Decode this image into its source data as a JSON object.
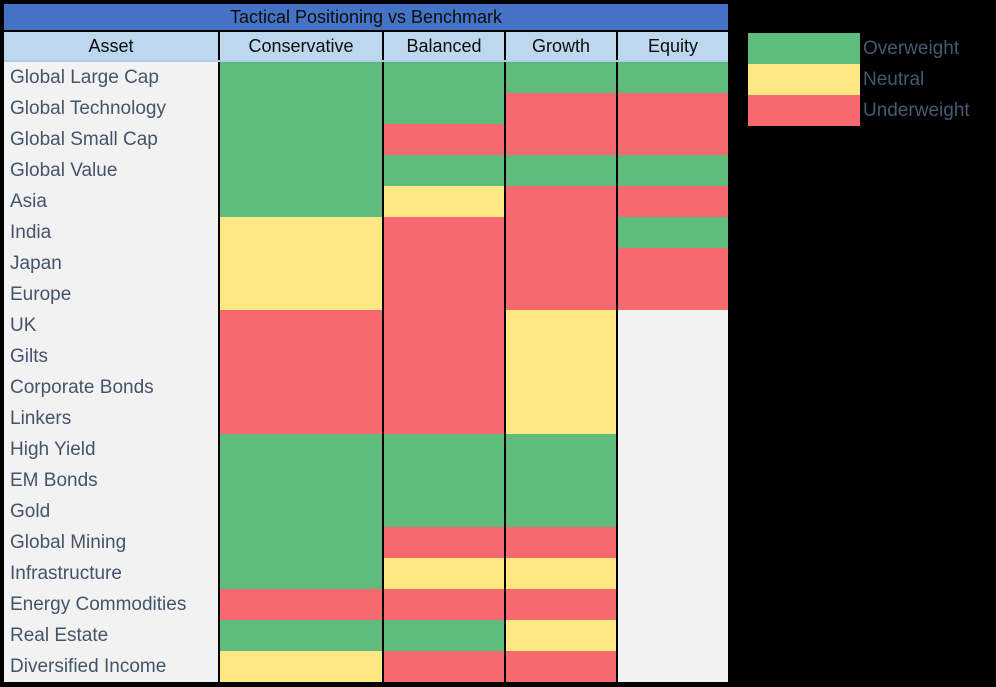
{
  "title": "Tactical Positioning vs Benchmark",
  "colors": {
    "overweight": "#5ebd7c",
    "neutral": "#fde884",
    "underweight": "#f6696e",
    "none": "#f2f2f2",
    "title_bar": "#4472c4",
    "header_bg": "#bdd7ee",
    "asset_col_bg": "#f2f2f2",
    "page_background": "#000000",
    "label_text": "#44546a"
  },
  "chart_data": {
    "type": "heatmap",
    "title": "Tactical Positioning vs Benchmark",
    "columns": [
      "Asset",
      "Conservative",
      "Balanced",
      "Growth",
      "Equity"
    ],
    "legend_position": "top-right",
    "legend": [
      {
        "label": "Overweight",
        "status": "overweight"
      },
      {
        "label": "Neutral",
        "status": "neutral"
      },
      {
        "label": "Underweight",
        "status": "underweight"
      }
    ],
    "rows": [
      {
        "asset": "Global Large Cap",
        "values": [
          "overweight",
          "overweight",
          "overweight",
          "overweight"
        ]
      },
      {
        "asset": "Global Technology",
        "values": [
          "overweight",
          "overweight",
          "underweight",
          "underweight"
        ]
      },
      {
        "asset": "Global Small Cap",
        "values": [
          "overweight",
          "underweight",
          "underweight",
          "underweight"
        ]
      },
      {
        "asset": "Global Value",
        "values": [
          "overweight",
          "overweight",
          "overweight",
          "overweight"
        ]
      },
      {
        "asset": "Asia",
        "values": [
          "overweight",
          "neutral",
          "underweight",
          "underweight"
        ]
      },
      {
        "asset": "India",
        "values": [
          "neutral",
          "underweight",
          "underweight",
          "overweight"
        ]
      },
      {
        "asset": "Japan",
        "values": [
          "neutral",
          "underweight",
          "underweight",
          "underweight"
        ]
      },
      {
        "asset": "Europe",
        "values": [
          "neutral",
          "underweight",
          "underweight",
          "underweight"
        ]
      },
      {
        "asset": "UK",
        "values": [
          "underweight",
          "underweight",
          "neutral",
          "none"
        ]
      },
      {
        "asset": "Gilts",
        "values": [
          "underweight",
          "underweight",
          "neutral",
          "none"
        ]
      },
      {
        "asset": "Corporate Bonds",
        "values": [
          "underweight",
          "underweight",
          "neutral",
          "none"
        ]
      },
      {
        "asset": "Linkers",
        "values": [
          "underweight",
          "underweight",
          "neutral",
          "none"
        ]
      },
      {
        "asset": "High Yield",
        "values": [
          "overweight",
          "overweight",
          "overweight",
          "none"
        ]
      },
      {
        "asset": "EM Bonds",
        "values": [
          "overweight",
          "overweight",
          "overweight",
          "none"
        ]
      },
      {
        "asset": "Gold",
        "values": [
          "overweight",
          "overweight",
          "overweight",
          "none"
        ]
      },
      {
        "asset": "Global Mining",
        "values": [
          "overweight",
          "underweight",
          "underweight",
          "none"
        ]
      },
      {
        "asset": "Infrastructure",
        "values": [
          "overweight",
          "neutral",
          "neutral",
          "none"
        ]
      },
      {
        "asset": "Energy Commodities",
        "values": [
          "underweight",
          "underweight",
          "underweight",
          "none"
        ]
      },
      {
        "asset": "Real Estate",
        "values": [
          "overweight",
          "overweight",
          "neutral",
          "none"
        ]
      },
      {
        "asset": "Diversified Income",
        "values": [
          "neutral",
          "underweight",
          "underweight",
          "none"
        ]
      }
    ]
  }
}
